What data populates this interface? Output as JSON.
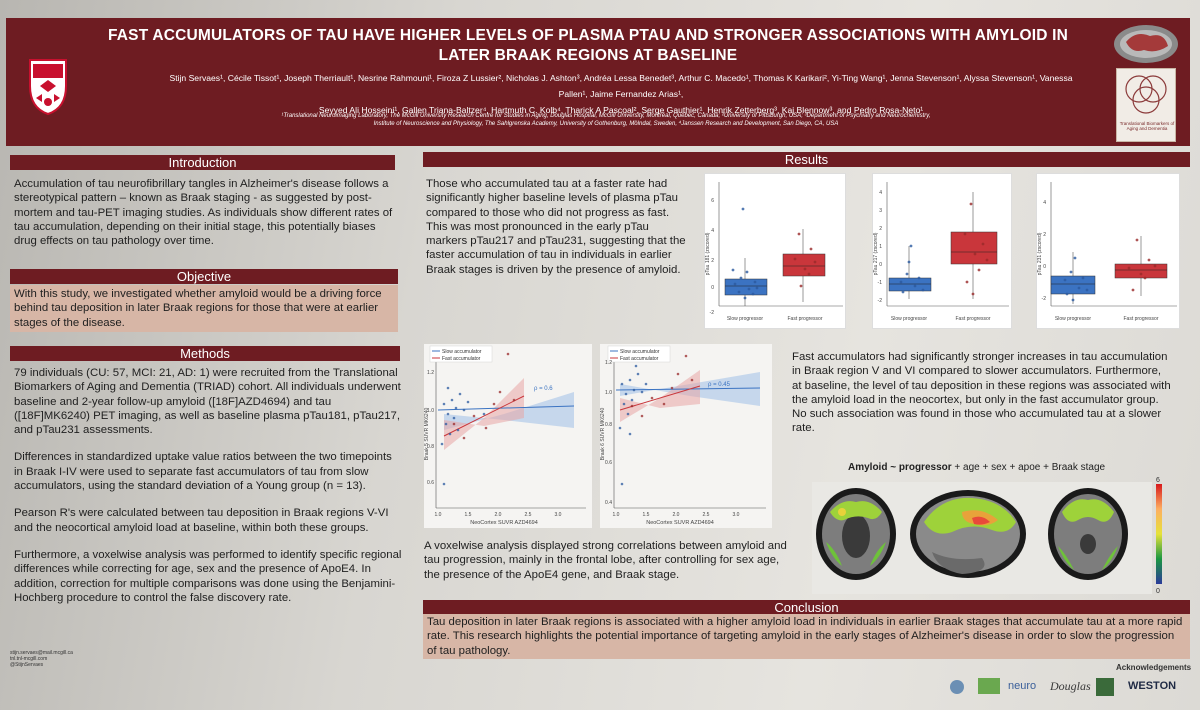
{
  "header": {
    "title_line1": "FAST ACCUMULATORS OF TAU HAVE HIGHER LEVELS OF PLASMA PTAU AND STRONGER ASSOCIATIONS WITH AMYLOID IN",
    "title_line2": "LATER BRAAK REGIONS AT BASELINE",
    "authors_line1": "Stijn Servaes¹, Cécile Tissot¹, Joseph Therriault¹, Nesrine Rahmouni¹, Firoza Z Lussier², Nicholas J. Ashton³, Andréa Lessa Benedet³, Arthur C. Macedo¹, Thomas K Karikari², Yi-Ting Wang¹, Jenna Stevenson¹, Alyssa Stevenson¹, Vanessa Pallen¹, Jaime Fernandez Arias¹,",
    "authors_line2": "Seyyed Ali Hosseini¹, Gallen Triana-Baltzer⁴, Hartmuth C. Kolb⁴, Tharick A Pascoal², Serge Gauthier¹, Henrik Zetterberg³, Kaj Blennow³, and Pedro Rosa-Neto¹",
    "affiliations": "¹Translational Neuroimaging Laboratory, The McGill University Research Centre for Studies in Aging, Douglas Hospital, McGill University, Montréal, Québec, Canada; ²University of Pittsburgh, USA; ³Department of Psychiatry and Neurochemistry, Institute of Neuroscience and Physiology, The Sahlgrenska Academy, University of Gothenburg, Mölndal, Sweden, ⁴Janssen Research and Development, San Diego, CA, USA",
    "triad_logo_text": "Translational Biomarkers of Aging and Dementia"
  },
  "introduction": {
    "heading": "Introduction",
    "text": "Accumulation of tau neurofibrillary tangles in Alzheimer's disease follows a stereotypical pattern – known as Braak staging - as suggested by post-mortem and tau-PET imaging studies. As individuals show different rates of tau accumulation, depending on their initial stage, this potentially biases drug effects on tau pathology over time."
  },
  "objective": {
    "heading": "Objective",
    "text": "With this study, we investigated whether amyloid would be a driving force behind tau deposition in later Braak regions for those that were at earlier stages of the disease."
  },
  "methods": {
    "heading": "Methods",
    "p1": "79 individuals (CU: 57, MCI: 21, AD: 1) were recruited from the Translational Biomarkers of Aging and Dementia (TRIAD) cohort. All individuals underwent baseline and 2-year follow-up amyloid ([18F]AZD4694) and tau ([18F]MK6240) PET imaging, as well as baseline plasma pTau181, pTau217, and pTau231 assessments.",
    "p2": "Differences in standardized uptake value ratios between the two timepoints in Braak I-IV were used to separate fast accumulators of tau from slow accumulators, using the standard deviation of a Young group (n = 13).",
    "p3": "Pearson R's were calculated between tau deposition in Braak regions V-VI and the neocortical amyloid load at baseline, within both these groups.",
    "p4": "Furthermore, a voxelwise analysis was performed to identify specific regional differences while correcting for age, sex and the presence of ApoE4. In addition, correction for multiple comparisons was done using the Benjamini-Hochberg procedure to control the false discovery rate."
  },
  "contact": {
    "line1": "stijn.servaes@mail.mcgill.ca",
    "line2": "tnl.tnl-mcgill.com",
    "line3": "@StijnServaes"
  },
  "results": {
    "heading": "Results",
    "text1": "Those who accumulated tau at a faster rate had significantly higher baseline levels of plasma pTau compared to those who did not progress as fast. This was most pronounced in the early pTau markers pTau217 and pTau231, suggesting that the faster accumulation of tau in individuals in earlier Braak stages is driven by the presence of amyloid.",
    "text2": "Fast accumulators had significantly stronger increases in tau accumulation in Braak region V and VI compared to slower accumulators. Furthermore, at baseline, the level of tau deposition in these regions was associated with the amyloid load in the neocortex, but only in the fast accumulator group. No such association was found in those who accumulated tau at a slower rate.",
    "text3": "A voxelwise analysis displayed strong correlations between amyloid and tau progression, mainly in the frontal lobe, after controlling for sex age, the presence of the ApoE4 gene, and Braak stage.",
    "model_formula_bold": "Amyloid ~ progressor",
    "model_formula_rest": " + age + sex + apoe + Braak stage",
    "colorbar_max": "6",
    "colorbar_min": "0"
  },
  "boxplots": [
    {
      "ylabel": "pTau 181 (zscored)",
      "xcats": [
        "Slow progressor",
        "Fast progressor"
      ],
      "yticks": [
        "6",
        "4",
        "2",
        "0",
        "-2"
      ]
    },
    {
      "ylabel": "pTau 217 (zscored)",
      "xcats": [
        "Slow progressor",
        "Fast progressor"
      ],
      "yticks": [
        "4",
        "3",
        "2",
        "1",
        "0",
        "-1",
        "-2"
      ]
    },
    {
      "ylabel": "pTau 231 (zscored)",
      "xcats": [
        "Slow progressor",
        "Fast progressor"
      ],
      "yticks": [
        "4",
        "2",
        "0",
        "-2"
      ]
    }
  ],
  "scatter": [
    {
      "ylabel": "Braak 5 SUVR MK6240",
      "xlabel": "NeoCortex SUVR AZD4694",
      "legend_slow": "Slow accumulator",
      "legend_fast": "Fast accumulator",
      "rho": "ρ = 0.6",
      "xticks": [
        "1.0",
        "1.5",
        "2.0",
        "2.5",
        "3.0"
      ],
      "yticks": [
        "1.2",
        "1.0",
        "0.8",
        "0.6"
      ]
    },
    {
      "ylabel": "Braak 6 SUVR MK6240",
      "xlabel": "NeoCortex SUVR AZD4694",
      "legend_slow": "Slow accumulator",
      "legend_fast": "Fast accumulator",
      "rho": "ρ = 0.45",
      "xticks": [
        "1.0",
        "1.5",
        "2.0",
        "2.5",
        "3.0"
      ],
      "yticks": [
        "1.2",
        "1.0",
        "0.8",
        "0.6",
        "0.4"
      ]
    }
  ],
  "conclusion": {
    "heading": "Conclusion",
    "text": "Tau deposition in later Braak regions is associated with a higher amyloid load in individuals in earlier Braak stages that accumulate tau at a more rapid rate. This research highlights the potential importance of targeting amyloid in the early stages of Alzheimer's disease in order to slow the progression of tau pathology."
  },
  "acknowledgements": {
    "heading": "Acknowledgements",
    "logos": [
      "neuro",
      "Douglas",
      "WESTON"
    ]
  },
  "colors": {
    "maroon": "#6e1c22",
    "highlight": "#d7b6a6",
    "slow_blue": "#3b73c2",
    "fast_red": "#c9363b"
  }
}
